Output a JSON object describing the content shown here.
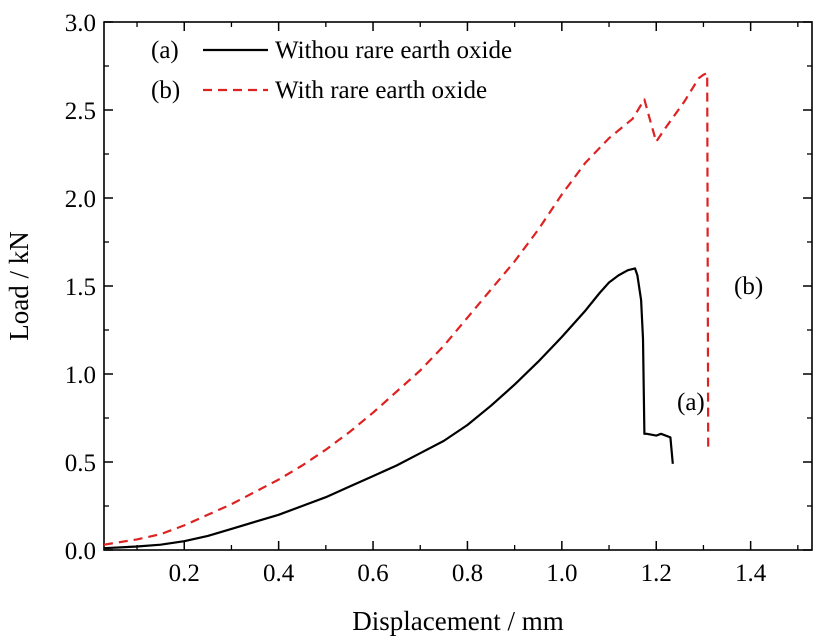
{
  "chart_data": {
    "type": "line",
    "title": "",
    "xlabel": "Displacement / mm",
    "ylabel": "Load / kN",
    "xlim": [
      0.03,
      1.53
    ],
    "ylim": [
      0.0,
      3.0
    ],
    "x_ticks": [
      0.2,
      0.4,
      0.6,
      0.8,
      1.0,
      1.2,
      1.4
    ],
    "x_tick_labels": [
      "0.2",
      "0.4",
      "0.6",
      "0.8",
      "1.0",
      "1.2",
      "1.4"
    ],
    "y_ticks": [
      0.0,
      0.5,
      1.0,
      1.5,
      2.0,
      2.5,
      3.0
    ],
    "y_tick_labels": [
      "0.0",
      "0.5",
      "1.0",
      "1.5",
      "2.0",
      "2.5",
      "3.0"
    ],
    "grid": false,
    "legend_position": "top-left",
    "series": [
      {
        "name": "Withou rare earth oxide",
        "legend_tag": "(a)",
        "annotation": "(a)",
        "color": "#000000",
        "style": "solid",
        "x": [
          0.03,
          0.1,
          0.15,
          0.2,
          0.25,
          0.3,
          0.35,
          0.4,
          0.45,
          0.5,
          0.55,
          0.6,
          0.65,
          0.7,
          0.75,
          0.8,
          0.85,
          0.9,
          0.95,
          1.0,
          1.05,
          1.08,
          1.1,
          1.12,
          1.14,
          1.155,
          1.16,
          1.168,
          1.172,
          1.175,
          1.18,
          1.2,
          1.21,
          1.23,
          1.235
        ],
        "y": [
          0.01,
          0.02,
          0.03,
          0.05,
          0.08,
          0.12,
          0.16,
          0.2,
          0.25,
          0.3,
          0.36,
          0.42,
          0.48,
          0.55,
          0.62,
          0.71,
          0.82,
          0.94,
          1.07,
          1.21,
          1.36,
          1.46,
          1.52,
          1.56,
          1.59,
          1.6,
          1.56,
          1.42,
          1.2,
          0.66,
          0.66,
          0.65,
          0.66,
          0.64,
          0.49
        ]
      },
      {
        "name": "With rare earth oxide",
        "legend_tag": "(b)",
        "annotation": "(b)",
        "color": "#dd2222",
        "style": "dashed",
        "x": [
          0.03,
          0.1,
          0.15,
          0.2,
          0.25,
          0.3,
          0.35,
          0.4,
          0.45,
          0.5,
          0.55,
          0.6,
          0.65,
          0.7,
          0.75,
          0.8,
          0.85,
          0.9,
          0.95,
          1.0,
          1.05,
          1.1,
          1.15,
          1.175,
          1.185,
          1.2,
          1.22,
          1.26,
          1.29,
          1.3,
          1.308,
          1.31
        ],
        "y": [
          0.03,
          0.06,
          0.09,
          0.14,
          0.2,
          0.26,
          0.33,
          0.4,
          0.48,
          0.57,
          0.67,
          0.78,
          0.9,
          1.02,
          1.16,
          1.32,
          1.48,
          1.64,
          1.82,
          2.02,
          2.2,
          2.34,
          2.45,
          2.56,
          2.46,
          2.32,
          2.4,
          2.55,
          2.68,
          2.7,
          2.71,
          0.58
        ]
      }
    ]
  }
}
